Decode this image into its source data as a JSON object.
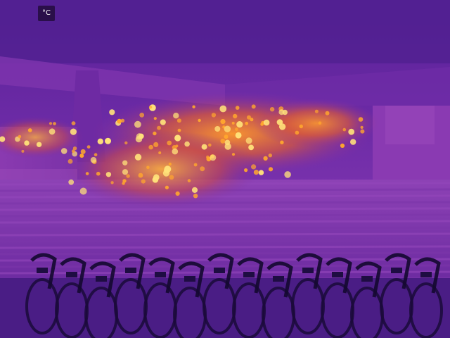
{
  "image": {
    "kind": "thermal camera photo",
    "palette": "iron",
    "scene_description_hidden": true
  },
  "overlay": {
    "unit_label": "°C"
  },
  "colors": {
    "background_purple": "#4b1f8f",
    "wall_purple": "#6a2aa0",
    "stair_purple": "#8a3fb5",
    "warm_orange": "#ff8a1a",
    "hot_yellow": "#ffd85a",
    "cold_navy": "#1a0a3a",
    "bike_dark": "#12082a"
  }
}
